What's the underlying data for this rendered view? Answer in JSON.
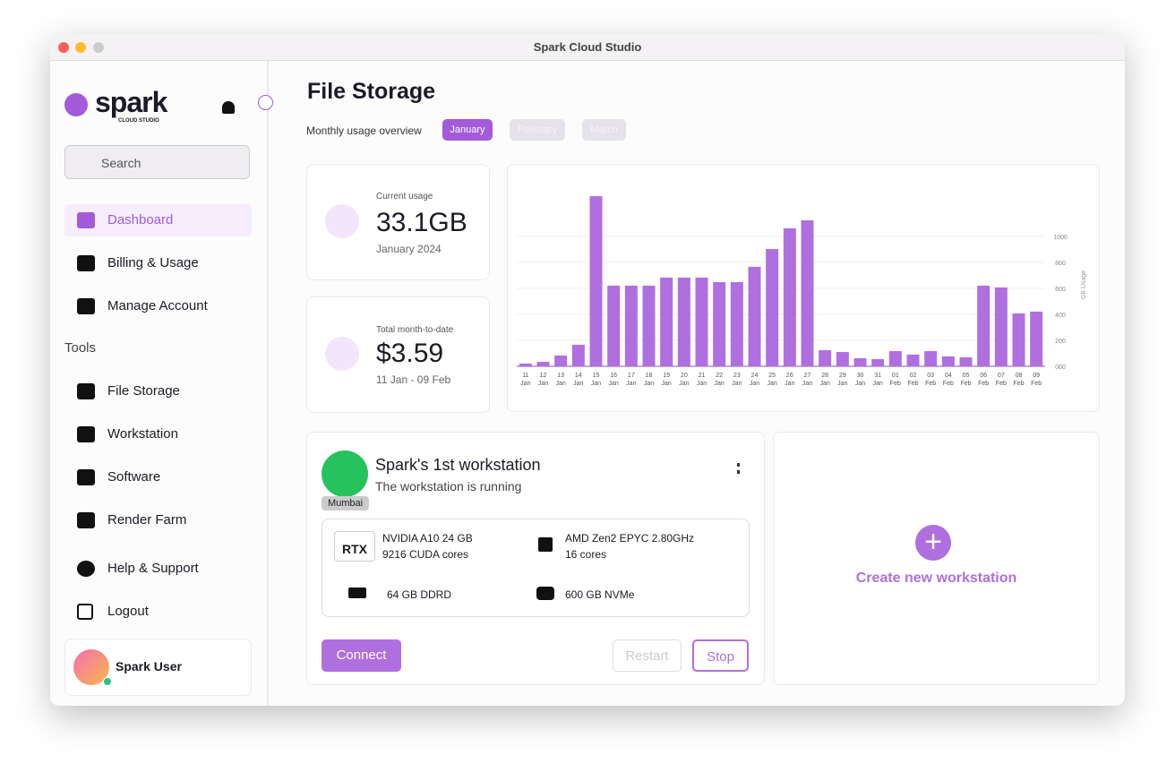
{
  "window_title": "Spark Cloud Studio",
  "sidebar": {
    "brand": "spark",
    "brand_sub": "CLOUD STUDIO",
    "search": "Search",
    "nav": [
      "Dashboard",
      "Billing & Usage",
      "Manage Account"
    ],
    "tools_label": "Tools",
    "tools": [
      "File Storage",
      "Workstation",
      "Software",
      "Render Farm"
    ],
    "bottom": [
      "Help & Support",
      "Logout"
    ],
    "user": "Spark User"
  },
  "main": {
    "title": "File Storage",
    "overview_label": "Monthly usage overview",
    "months": [
      "January",
      "February",
      "March"
    ],
    "usage": {
      "label": "Current usage",
      "value": "33.1GB",
      "sub": "January 2024"
    },
    "cost": {
      "label": "Total month-to-date",
      "value": "$3.59",
      "sub": "11 Jan - 09 Feb"
    }
  },
  "chart_data": {
    "type": "bar",
    "y_label": "GB Usage",
    "color": "#b06fde",
    "categories": [
      "11",
      "12",
      "13",
      "14",
      "15",
      "16",
      "17",
      "18",
      "19",
      "20",
      "21",
      "22",
      "23",
      "24",
      "25",
      "26",
      "27",
      "28",
      "29",
      "30",
      "31",
      "01",
      "02",
      "03",
      "04",
      "05",
      "06",
      "07",
      "08",
      "09"
    ],
    "category_months": [
      "Jan",
      "Jan",
      "Jan",
      "Jan",
      "Jan",
      "Jan",
      "Jan",
      "Jan",
      "Jan",
      "Jan",
      "Jan",
      "Jan",
      "Jan",
      "Jan",
      "Jan",
      "Jan",
      "Jan",
      "Jan",
      "Jan",
      "Jan",
      "Jan",
      "Feb",
      "Feb",
      "Feb",
      "Feb",
      "Feb",
      "Feb",
      "Feb",
      "Feb",
      "Feb"
    ],
    "values": [
      21,
      34,
      83,
      166,
      1310,
      621,
      621,
      621,
      683,
      683,
      683,
      648,
      648,
      766,
      903,
      1062,
      1124,
      124,
      110,
      62,
      55,
      117,
      90,
      117,
      76,
      69,
      621,
      607,
      407,
      421
    ],
    "ylim": [
      0,
      1400
    ],
    "yticks": [
      {
        "value": 0,
        "label": "000"
      },
      200,
      400,
      600,
      800,
      1000
    ],
    "grid": true
  },
  "workstation": {
    "name": "Spark's 1st workstation",
    "status": "The workstation is running",
    "location": "Mumbai",
    "gpu_badge": "RTX",
    "gpu": [
      "NVIDIA A10 24 GB",
      "9216 CUDA cores"
    ],
    "cpu": [
      "AMD Zen2 EPYC 2.80GHz",
      "16 cores"
    ],
    "ram": "64 GB DDRD",
    "disk": "600 GB NVMe",
    "buttons": [
      "Connect",
      "Restart",
      "Stop"
    ]
  },
  "create": "Create new workstation"
}
